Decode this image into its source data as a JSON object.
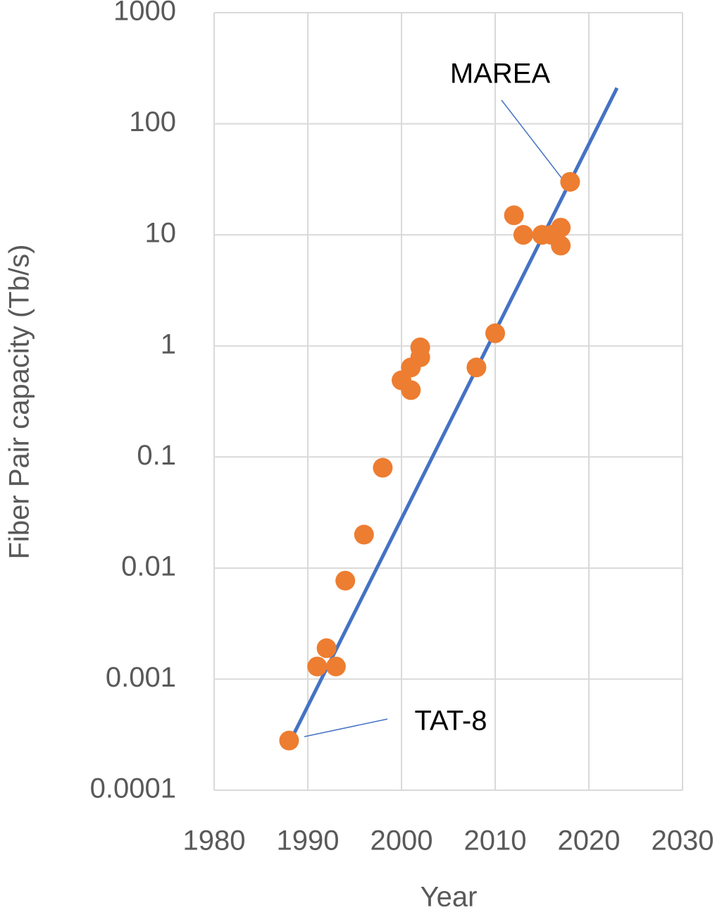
{
  "chart_data": {
    "type": "scatter",
    "xlabel": "Year",
    "ylabel": "Fiber Pair capacity (Tb/s)",
    "xlim": [
      1980,
      2030
    ],
    "xticks": [
      1980,
      1990,
      2000,
      2010,
      2020,
      2030
    ],
    "ylim": [
      0.0001,
      1000
    ],
    "yticks": [
      0.0001,
      0.001,
      0.01,
      0.1,
      1,
      10,
      100,
      1000
    ],
    "yscale": "log",
    "grid": true,
    "series": [
      {
        "type": "scatter",
        "color": "#ed7d31",
        "x": [
          1988,
          1991,
          1992,
          1993,
          1994,
          1996,
          1998,
          2000,
          2001,
          2001,
          2002,
          2002,
          2008,
          2010,
          2012,
          2013,
          2015,
          2016,
          2017,
          2017,
          2018
        ],
        "values": [
          0.00028,
          0.0013,
          0.0019,
          0.0013,
          0.0077,
          0.02,
          0.08,
          0.49,
          0.64,
          0.4,
          0.79,
          0.97,
          0.64,
          1.3,
          15,
          10,
          10,
          10,
          11.6,
          8,
          30
        ]
      },
      {
        "type": "line",
        "color": "#4472c4",
        "x": [
          1988.5,
          2023
        ],
        "values": [
          0.00032,
          210
        ]
      }
    ],
    "annotations": [
      {
        "text": "MAREA"
      },
      {
        "text": "TAT-8"
      }
    ]
  }
}
